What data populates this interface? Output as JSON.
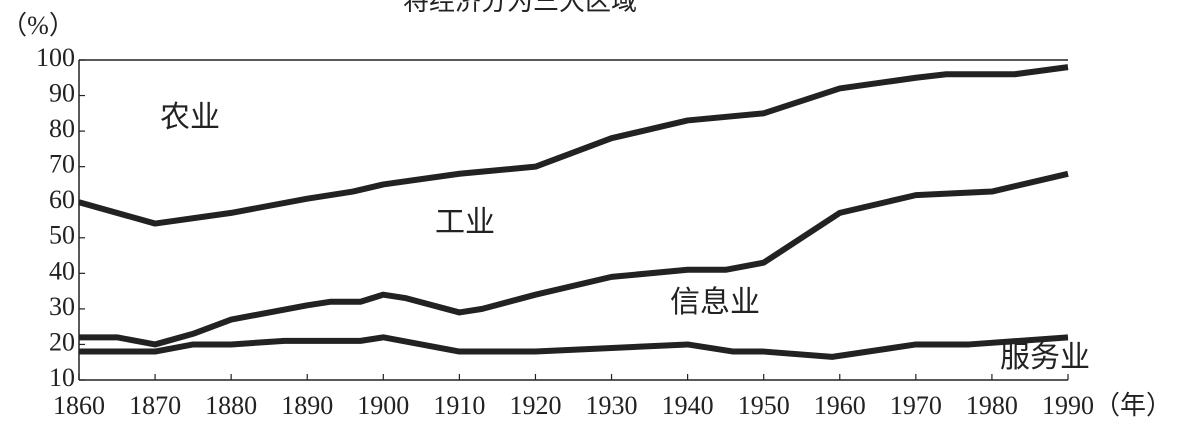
{
  "chart_data": {
    "type": "line",
    "title": "将经济分为三大区域",
    "y_label": "（%）",
    "x_label": "（年）",
    "xlim": [
      1860,
      1990
    ],
    "xticks": [
      1860,
      1870,
      1880,
      1890,
      1900,
      1910,
      1920,
      1930,
      1940,
      1950,
      1960,
      1970,
      1980,
      1990
    ],
    "ylim": [
      10,
      100
    ],
    "yticks": [
      10,
      20,
      30,
      40,
      50,
      60,
      70,
      80,
      90,
      100
    ],
    "annotations": [
      "农业",
      "工业",
      "信息业",
      "服务业"
    ],
    "series": [
      {
        "color": "#222222",
        "x": [
          1860,
          1870,
          1880,
          1890,
          1896,
          1900,
          1910,
          1920,
          1930,
          1940,
          1950,
          1960,
          1970,
          1974,
          1983,
          1990
        ],
        "values": [
          60,
          54,
          57,
          61,
          63,
          65,
          68,
          70,
          78,
          83,
          85,
          92,
          95,
          96,
          96,
          98
        ]
      },
      {
        "color": "#222222",
        "x": [
          1860,
          1865,
          1870,
          1875,
          1880,
          1890,
          1893,
          1897,
          1900,
          1903,
          1910,
          1913,
          1920,
          1930,
          1940,
          1945,
          1950,
          1960,
          1970,
          1980,
          1990
        ],
        "values": [
          22,
          22,
          20,
          23,
          27,
          31,
          32,
          32,
          34,
          33,
          29,
          30,
          34,
          39,
          41,
          41,
          43,
          57,
          62,
          63,
          68
        ]
      },
      {
        "color": "#222222",
        "x": [
          1860,
          1870,
          1875,
          1880,
          1887,
          1897,
          1900,
          1910,
          1920,
          1930,
          1940,
          1946,
          1950,
          1959,
          1970,
          1977,
          1990
        ],
        "values": [
          18,
          18,
          20,
          20,
          21,
          21,
          22,
          18,
          18,
          19,
          20,
          18,
          18,
          16.5,
          20,
          20,
          22
        ]
      }
    ]
  }
}
